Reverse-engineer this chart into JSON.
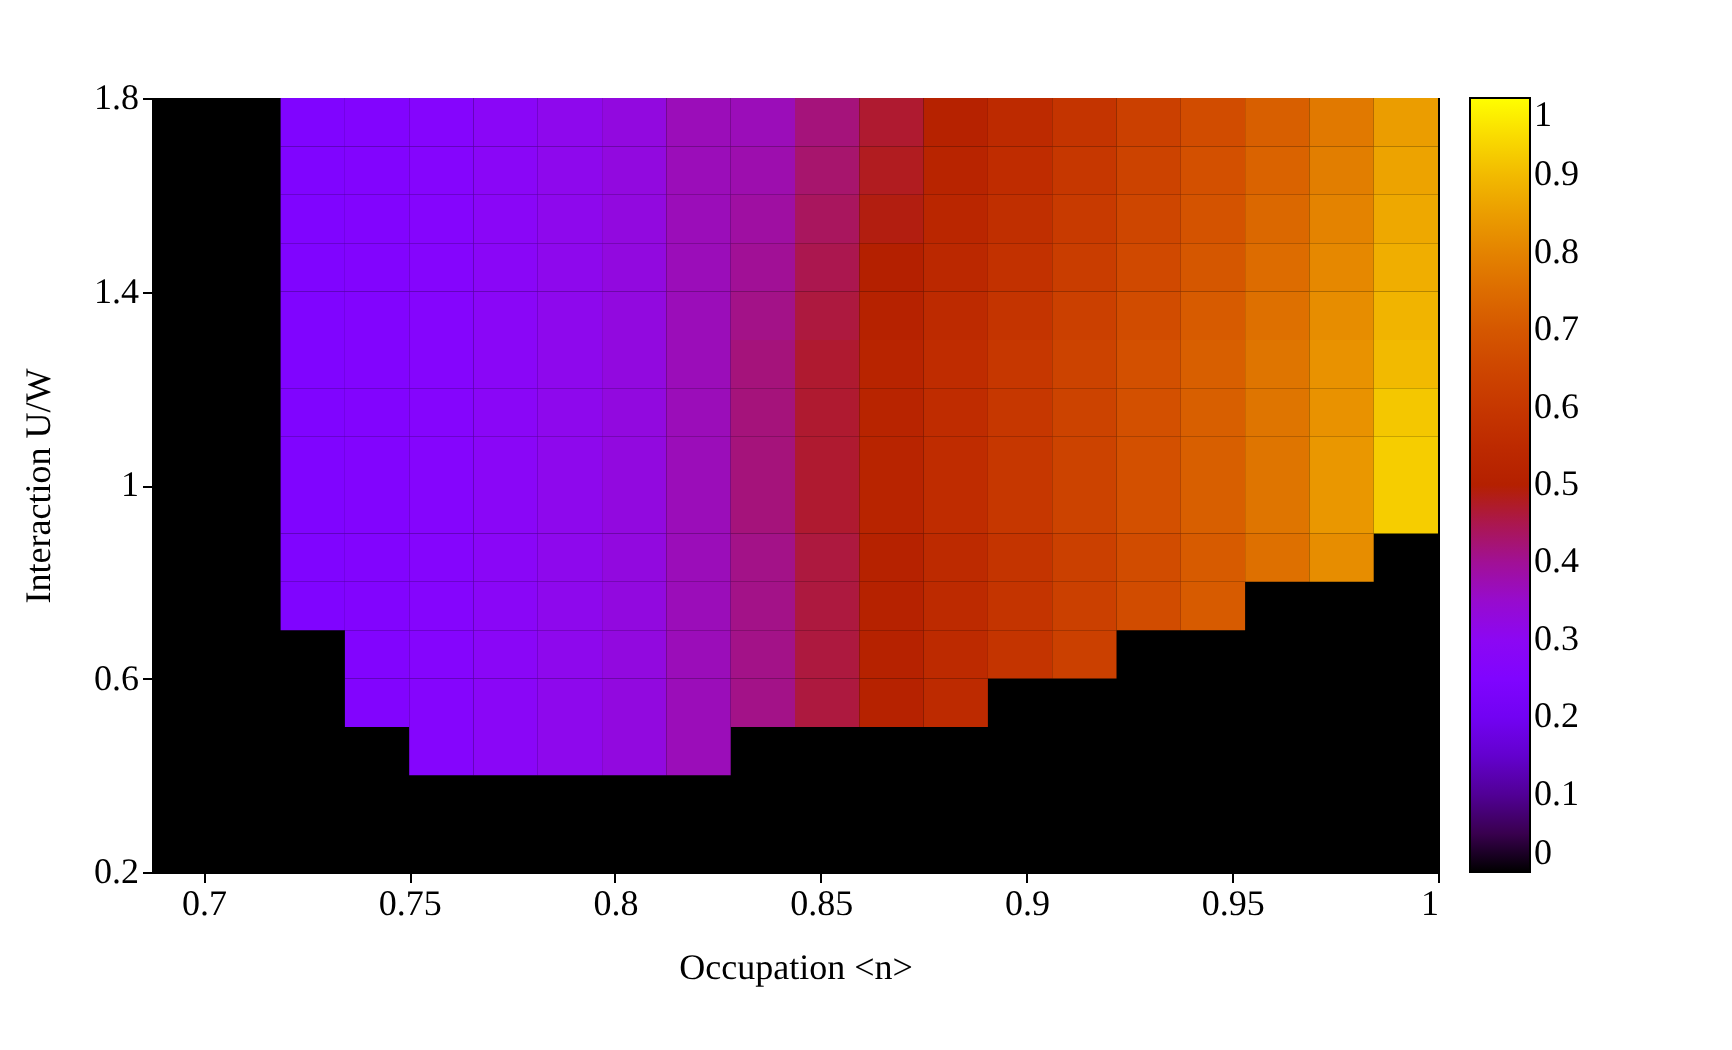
{
  "chart_data": {
    "type": "heatmap",
    "xlabel": "Occupation <n>",
    "ylabel": "Interaction U/W",
    "x": [
      0.6953125,
      0.7109375,
      0.7265625,
      0.7421875,
      0.7578125,
      0.7734375,
      0.7890625,
      0.8046875,
      0.8203125,
      0.8359375,
      0.8515625,
      0.8671875,
      0.8828125,
      0.8984375,
      0.9140625,
      0.9296875,
      0.9453125,
      0.9609375,
      0.9765625,
      0.9921875
    ],
    "y": [
      1.75,
      1.65,
      1.55,
      1.45,
      1.35,
      1.25,
      1.15,
      1.05,
      0.95,
      0.85,
      0.75,
      0.65,
      0.55,
      0.45
    ],
    "xlim": [
      0.6875,
      1.0
    ],
    "xticks": [
      0.7,
      0.75,
      0.8,
      0.85,
      0.9,
      0.95,
      1
    ],
    "ylim": [
      0.2,
      1.8
    ],
    "yticks": [
      0.2,
      0.6,
      1,
      1.4,
      1.8
    ],
    "clim": [
      0,
      1
    ],
    "cticks": [
      0,
      0.1,
      0.2,
      0.3,
      0.4,
      0.5,
      0.6,
      0.7,
      0.8,
      0.9,
      1
    ],
    "cells": [
      [
        null,
        null,
        0.25,
        0.26,
        0.27,
        0.29,
        0.31,
        0.33,
        0.37,
        0.37,
        0.42,
        0.47,
        0.51,
        0.55,
        0.59,
        0.63,
        0.67,
        0.72,
        0.78,
        0.85
      ],
      [
        null,
        null,
        0.25,
        0.26,
        0.27,
        0.29,
        0.31,
        0.33,
        0.37,
        0.38,
        0.43,
        0.48,
        0.52,
        0.56,
        0.6,
        0.64,
        0.68,
        0.73,
        0.79,
        0.86
      ],
      [
        null,
        null,
        0.25,
        0.26,
        0.27,
        0.29,
        0.31,
        0.33,
        0.37,
        0.39,
        0.44,
        0.49,
        0.53,
        0.57,
        0.61,
        0.65,
        0.69,
        0.74,
        0.8,
        0.87
      ],
      [
        null,
        null,
        0.25,
        0.26,
        0.27,
        0.29,
        0.31,
        0.33,
        0.37,
        0.4,
        0.45,
        0.5,
        0.54,
        0.58,
        0.62,
        0.66,
        0.7,
        0.75,
        0.81,
        0.88
      ],
      [
        null,
        null,
        0.25,
        0.26,
        0.27,
        0.29,
        0.31,
        0.33,
        0.37,
        0.41,
        0.46,
        0.51,
        0.55,
        0.59,
        0.63,
        0.67,
        0.71,
        0.76,
        0.82,
        0.89
      ],
      [
        null,
        null,
        0.25,
        0.26,
        0.27,
        0.29,
        0.31,
        0.33,
        0.37,
        0.42,
        0.47,
        0.52,
        0.56,
        0.6,
        0.64,
        0.68,
        0.72,
        0.77,
        0.83,
        0.9
      ],
      [
        null,
        null,
        0.25,
        0.26,
        0.27,
        0.29,
        0.31,
        0.33,
        0.37,
        0.42,
        0.47,
        0.52,
        0.56,
        0.6,
        0.64,
        0.68,
        0.72,
        0.77,
        0.83,
        0.92
      ],
      [
        null,
        null,
        0.25,
        0.26,
        0.27,
        0.29,
        0.31,
        0.33,
        0.37,
        0.42,
        0.47,
        0.52,
        0.56,
        0.6,
        0.64,
        0.68,
        0.72,
        0.77,
        0.84,
        0.93
      ],
      [
        null,
        null,
        0.25,
        0.26,
        0.27,
        0.29,
        0.31,
        0.33,
        0.37,
        0.42,
        0.47,
        0.52,
        0.56,
        0.6,
        0.64,
        0.68,
        0.72,
        0.77,
        0.84,
        0.93
      ],
      [
        null,
        null,
        0.25,
        0.26,
        0.27,
        0.29,
        0.31,
        0.33,
        0.37,
        0.41,
        0.46,
        0.51,
        0.55,
        0.59,
        0.63,
        0.67,
        0.71,
        0.76,
        0.82,
        null
      ],
      [
        null,
        null,
        0.25,
        0.26,
        0.27,
        0.29,
        0.31,
        0.33,
        0.37,
        0.41,
        0.46,
        0.51,
        0.55,
        0.59,
        0.63,
        0.67,
        0.71,
        null,
        null,
        null
      ],
      [
        null,
        null,
        null,
        0.26,
        0.27,
        0.29,
        0.31,
        0.33,
        0.37,
        0.41,
        0.46,
        0.51,
        0.55,
        0.59,
        0.63,
        null,
        null,
        null,
        null,
        null
      ],
      [
        null,
        null,
        null,
        0.26,
        0.27,
        0.29,
        0.31,
        0.33,
        0.37,
        0.41,
        0.46,
        0.51,
        0.55,
        null,
        null,
        null,
        null,
        null,
        null,
        null
      ],
      [
        null,
        null,
        null,
        null,
        0.27,
        0.29,
        0.31,
        0.33,
        0.37,
        null,
        null,
        null,
        null,
        null,
        null,
        null,
        null,
        null,
        null,
        null
      ]
    ]
  }
}
